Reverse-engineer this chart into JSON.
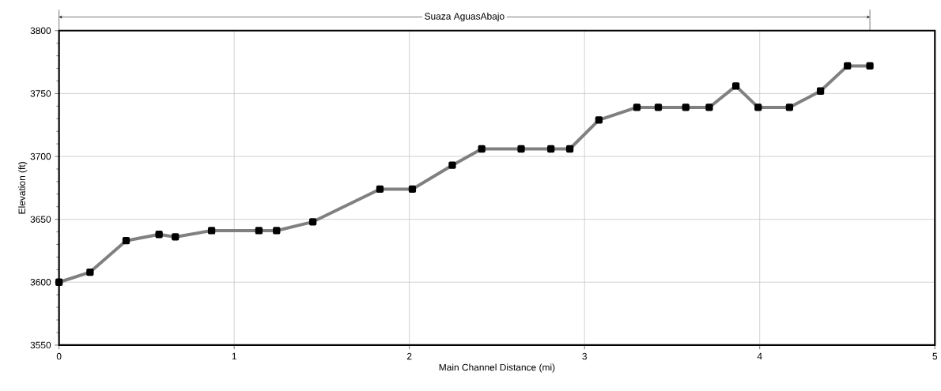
{
  "chart_data": {
    "type": "line",
    "title": "Suaza AguasAbajo",
    "xlabel": "Main Channel Distance (mi)",
    "ylabel": "Elevation (ft)",
    "x": [
      0,
      0.177,
      0.383,
      0.571,
      0.664,
      0.871,
      1.141,
      1.242,
      1.449,
      1.832,
      2.017,
      2.245,
      2.413,
      2.638,
      2.808,
      2.916,
      3.082,
      3.299,
      3.421,
      3.578,
      3.712,
      3.864,
      3.991,
      4.17,
      4.347,
      4.501,
      4.629
    ],
    "series": [
      {
        "color": "#808080",
        "values": [
          3600,
          3608,
          3633,
          3638,
          3636,
          3641,
          3641,
          3641,
          3648,
          3674,
          3674,
          3693,
          3706,
          3706,
          3706,
          3706,
          3729,
          3739,
          3739,
          3739,
          3739,
          3756,
          3739,
          3739,
          3752,
          3772,
          3772
        ]
      }
    ],
    "xlim": [
      0,
      5
    ],
    "ylim": [
      3550,
      3800
    ],
    "xticks": [
      0,
      1,
      2,
      3,
      4,
      5
    ],
    "yticks": [
      3550,
      3600,
      3650,
      3700,
      3750,
      3800
    ],
    "grid": true,
    "marker": "square",
    "line_style": "solid"
  }
}
